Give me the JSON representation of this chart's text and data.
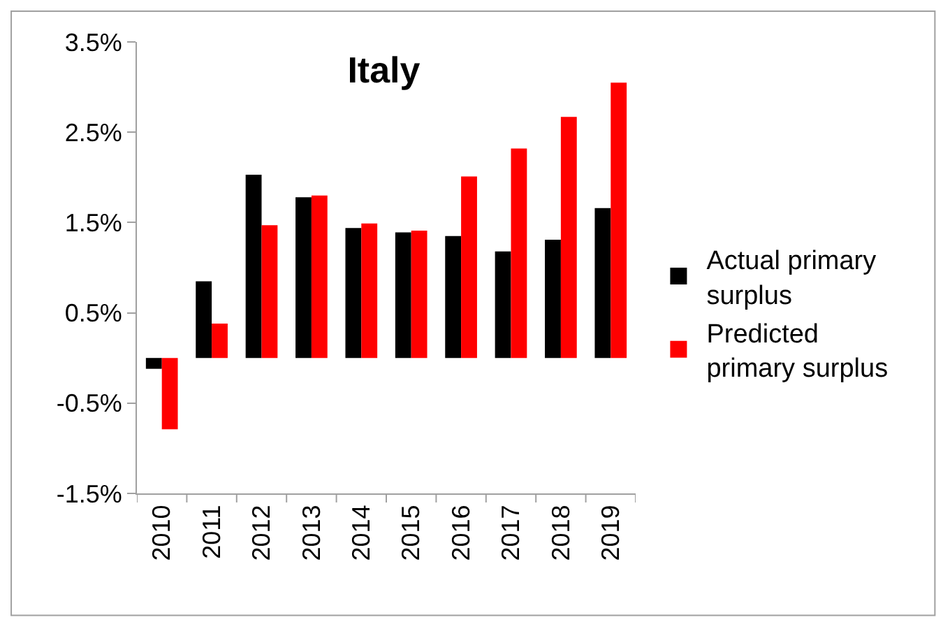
{
  "chart_data": {
    "type": "bar",
    "title": "Italy",
    "categories": [
      "2010",
      "2011",
      "2012",
      "2013",
      "2014",
      "2015",
      "2016",
      "2017",
      "2018",
      "2019"
    ],
    "series": [
      {
        "name": "Actual primary surplus",
        "color": "#000000",
        "values": [
          -0.12,
          0.85,
          2.03,
          1.78,
          1.44,
          1.39,
          1.35,
          1.18,
          1.31,
          1.66
        ]
      },
      {
        "name": "Predicted primary surplus",
        "color": "#ff0000",
        "values": [
          -0.79,
          0.38,
          1.47,
          1.8,
          1.49,
          1.41,
          2.01,
          2.32,
          2.67,
          3.05
        ]
      }
    ],
    "ylim": [
      -1.5,
      3.5
    ],
    "yticks": [
      {
        "value": -1.5,
        "label": "-1.5%"
      },
      {
        "value": -0.5,
        "label": "-0.5%"
      },
      {
        "value": 0.5,
        "label": "0.5%"
      },
      {
        "value": 1.5,
        "label": "1.5%"
      },
      {
        "value": 2.5,
        "label": "2.5%"
      },
      {
        "value": 3.5,
        "label": "3.5%"
      }
    ],
    "legend": "right"
  }
}
